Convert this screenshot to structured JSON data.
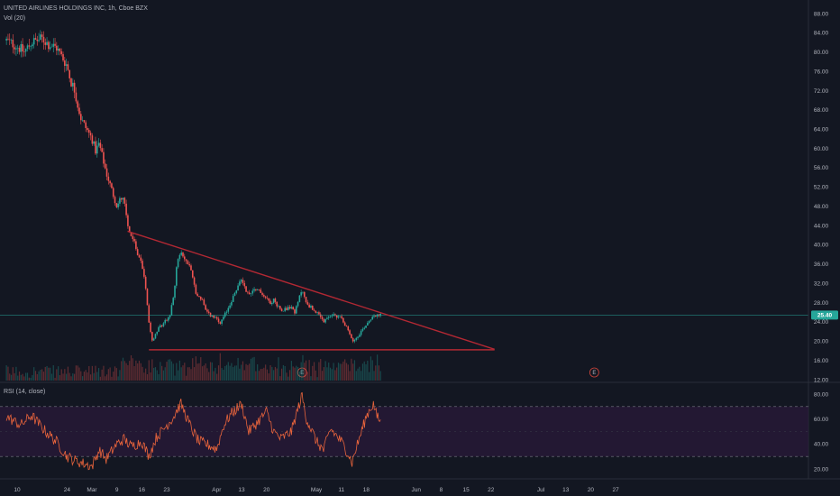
{
  "chart_data": {
    "type": "candlestick",
    "symbol_legend": "UNITED AIRLINES HOLDINGS INC, 1h, Cboe BZX",
    "volume_legend": "Vol (20)",
    "rsi_legend": "RSI (14, close)",
    "price_ticks": [
      "88.00",
      "84.00",
      "80.00",
      "76.00",
      "72.00",
      "68.00",
      "64.00",
      "60.00",
      "56.00",
      "52.00",
      "48.00",
      "44.00",
      "40.00",
      "36.00",
      "32.00",
      "28.00",
      "24.00",
      "20.00",
      "16.00",
      "12.00"
    ],
    "price_tick_values": [
      88,
      84,
      80,
      76,
      72,
      68,
      64,
      60,
      56,
      52,
      48,
      44,
      40,
      36,
      32,
      28,
      24,
      20,
      16,
      12
    ],
    "price_range": [
      12,
      88
    ],
    "current_price_label": "25.40",
    "current_price": 25.4,
    "rsi_ticks": [
      "80.00",
      "60.00",
      "40.00",
      "20.00"
    ],
    "rsi_tick_values": [
      80,
      60,
      40,
      20
    ],
    "rsi_range": [
      10,
      85
    ],
    "rsi_bands": [
      70,
      30
    ],
    "time_ticks": [
      "10",
      "24",
      "Mar",
      "9",
      "16",
      "23",
      "Apr",
      "13",
      "20",
      "May",
      "11",
      "18",
      "Jun",
      "8",
      "15",
      "22",
      "Jul",
      "13",
      "20",
      "27"
    ],
    "time_tick_dates": [
      "2020-02-10",
      "2020-02-24",
      "2020-03-02",
      "2020-03-09",
      "2020-03-16",
      "2020-03-23",
      "2020-04-06",
      "2020-04-13",
      "2020-04-20",
      "2020-05-04",
      "2020-05-11",
      "2020-05-18",
      "2020-06-01",
      "2020-06-08",
      "2020-06-15",
      "2020-06-22",
      "2020-07-06",
      "2020-07-13",
      "2020-07-20",
      "2020-07-27"
    ],
    "price_path": [
      [
        "2020-02-07",
        82.4
      ],
      [
        "2020-02-10",
        81.2
      ],
      [
        "2020-02-12",
        80.0
      ],
      [
        "2020-02-14",
        82.0
      ],
      [
        "2020-02-17",
        82.8
      ],
      [
        "2020-02-19",
        81.5
      ],
      [
        "2020-02-21",
        81.0
      ],
      [
        "2020-02-24",
        77.2
      ],
      [
        "2020-02-25",
        74.0
      ],
      [
        "2020-02-26",
        72.5
      ],
      [
        "2020-02-27",
        69.0
      ],
      [
        "2020-02-28",
        66.0
      ],
      [
        "2020-03-02",
        62.0
      ],
      [
        "2020-03-03",
        59.5
      ],
      [
        "2020-03-04",
        61.0
      ],
      [
        "2020-03-05",
        58.0
      ],
      [
        "2020-03-06",
        55.0
      ],
      [
        "2020-03-09",
        48.0
      ],
      [
        "2020-03-10",
        49.5
      ],
      [
        "2020-03-11",
        50.0
      ],
      [
        "2020-03-12",
        44.0
      ],
      [
        "2020-03-13",
        42.0
      ],
      [
        "2020-03-16",
        36.0
      ],
      [
        "2020-03-17",
        32.0
      ],
      [
        "2020-03-18",
        24.0
      ],
      [
        "2020-03-19",
        20.0
      ],
      [
        "2020-03-20",
        22.0
      ],
      [
        "2020-03-23",
        24.5
      ],
      [
        "2020-03-24",
        25.5
      ],
      [
        "2020-03-25",
        30.0
      ],
      [
        "2020-03-26",
        37.0
      ],
      [
        "2020-03-27",
        38.0
      ],
      [
        "2020-03-30",
        35.0
      ],
      [
        "2020-03-31",
        30.0
      ],
      [
        "2020-04-02",
        28.5
      ],
      [
        "2020-04-03",
        26.0
      ],
      [
        "2020-04-06",
        24.5
      ],
      [
        "2020-04-07",
        23.5
      ],
      [
        "2020-04-08",
        25.0
      ],
      [
        "2020-04-09",
        26.5
      ],
      [
        "2020-04-13",
        33.0
      ],
      [
        "2020-04-14",
        31.0
      ],
      [
        "2020-04-15",
        29.5
      ],
      [
        "2020-04-16",
        30.5
      ],
      [
        "2020-04-17",
        31.0
      ],
      [
        "2020-04-20",
        29.0
      ],
      [
        "2020-04-21",
        28.0
      ],
      [
        "2020-04-22",
        28.5
      ],
      [
        "2020-04-23",
        27.5
      ],
      [
        "2020-04-24",
        26.5
      ],
      [
        "2020-04-27",
        27.0
      ],
      [
        "2020-04-28",
        26.0
      ],
      [
        "2020-04-29",
        28.5
      ],
      [
        "2020-04-30",
        31.0
      ],
      [
        "2020-05-01",
        28.0
      ],
      [
        "2020-05-04",
        26.0
      ],
      [
        "2020-05-05",
        25.0
      ],
      [
        "2020-05-06",
        24.0
      ],
      [
        "2020-05-07",
        24.5
      ],
      [
        "2020-05-08",
        25.5
      ],
      [
        "2020-05-11",
        25.0
      ],
      [
        "2020-05-12",
        23.5
      ],
      [
        "2020-05-13",
        22.0
      ],
      [
        "2020-05-14",
        20.0
      ],
      [
        "2020-05-15",
        20.5
      ],
      [
        "2020-05-18",
        23.5
      ],
      [
        "2020-05-19",
        24.5
      ],
      [
        "2020-05-20",
        25.5
      ],
      [
        "2020-05-21",
        25.2
      ],
      [
        "2020-05-22",
        25.4
      ]
    ],
    "trendlines": [
      {
        "name": "descending-resistance",
        "from": [
          "2020-03-12",
          42.8
        ],
        "to": [
          "2020-06-23",
          18.3
        ],
        "color": "#b22833"
      },
      {
        "name": "horizontal-support",
        "from": [
          "2020-03-18",
          18.2
        ],
        "to": [
          "2020-06-23",
          18.2
        ],
        "color": "#b22833"
      }
    ],
    "earnings_markers": [
      {
        "label": "E",
        "date": "2020-04-30"
      },
      {
        "label": "E",
        "date": "2020-07-21"
      }
    ],
    "rsi_path": [
      [
        "2020-02-07",
        62
      ],
      [
        "2020-02-11",
        55
      ],
      [
        "2020-02-14",
        63
      ],
      [
        "2020-02-18",
        50
      ],
      [
        "2020-02-21",
        42
      ],
      [
        "2020-02-24",
        30
      ],
      [
        "2020-02-26",
        27
      ],
      [
        "2020-03-02",
        22
      ],
      [
        "2020-03-04",
        35
      ],
      [
        "2020-03-06",
        28
      ],
      [
        "2020-03-09",
        40
      ],
      [
        "2020-03-11",
        44
      ],
      [
        "2020-03-13",
        38
      ],
      [
        "2020-03-16",
        42
      ],
      [
        "2020-03-18",
        30
      ],
      [
        "2020-03-20",
        45
      ],
      [
        "2020-03-23",
        55
      ],
      [
        "2020-03-25",
        62
      ],
      [
        "2020-03-26",
        68
      ],
      [
        "2020-03-27",
        72
      ],
      [
        "2020-03-30",
        52
      ],
      [
        "2020-04-01",
        42
      ],
      [
        "2020-04-03",
        40
      ],
      [
        "2020-04-06",
        36
      ],
      [
        "2020-04-08",
        55
      ],
      [
        "2020-04-10",
        64
      ],
      [
        "2020-04-13",
        72
      ],
      [
        "2020-04-15",
        50
      ],
      [
        "2020-04-17",
        56
      ],
      [
        "2020-04-20",
        66
      ],
      [
        "2020-04-22",
        50
      ],
      [
        "2020-04-24",
        44
      ],
      [
        "2020-04-27",
        50
      ],
      [
        "2020-04-29",
        70
      ],
      [
        "2020-04-30",
        79
      ],
      [
        "2020-05-01",
        62
      ],
      [
        "2020-05-04",
        42
      ],
      [
        "2020-05-06",
        35
      ],
      [
        "2020-05-08",
        52
      ],
      [
        "2020-05-11",
        42
      ],
      [
        "2020-05-13",
        32
      ],
      [
        "2020-05-14",
        25
      ],
      [
        "2020-05-15",
        35
      ],
      [
        "2020-05-18",
        62
      ],
      [
        "2020-05-19",
        68
      ],
      [
        "2020-05-20",
        72
      ],
      [
        "2020-05-21",
        62
      ],
      [
        "2020-05-22",
        58
      ]
    ],
    "colors": {
      "background": "#131722",
      "up": "#26a69a",
      "down": "#ef5350",
      "trendline": "#b22833",
      "rsi_line": "#e8643c",
      "rsi_fill": "#2a1a3a",
      "current_price_badge": "#26a69a",
      "gridline": "#1c2030"
    },
    "grid": false,
    "legend_placement": "top-left"
  }
}
